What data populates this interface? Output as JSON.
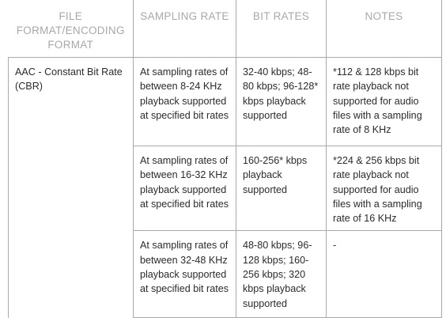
{
  "table": {
    "headers": [
      "FILE FORMAT/ENCODING FORMAT",
      "SAMPLING RATE",
      "BIT RATES",
      "NOTES"
    ],
    "format": "AAC - Constant Bit Rate (CBR)",
    "rows": [
      {
        "sampling_rate": "At sampling rates of between 8-24 KHz playback supported at specified bit rates",
        "bit_rates": "32-40 kbps; 48-80 kbps; 96-128* kbps playback supported",
        "notes": "*112 & 128 kbps bit rate playback not supported for audio files with a sampling rate of 8 KHz"
      },
      {
        "sampling_rate": "At sampling rates of between 16-32 KHz playback supported at specified bit rates",
        "bit_rates": "160-256* kbps playback supported",
        "notes": "*224 & 256 kbps bit rate playback not supported for audio files with a sampling rate of 16 KHz"
      },
      {
        "sampling_rate": "At sampling rates of between 32-48 KHz playback supported at specified bit rates",
        "bit_rates": "48-80 kbps; 96-128 kbps; 160-256 kbps; 320 kbps playback supported",
        "notes": "-"
      }
    ]
  }
}
